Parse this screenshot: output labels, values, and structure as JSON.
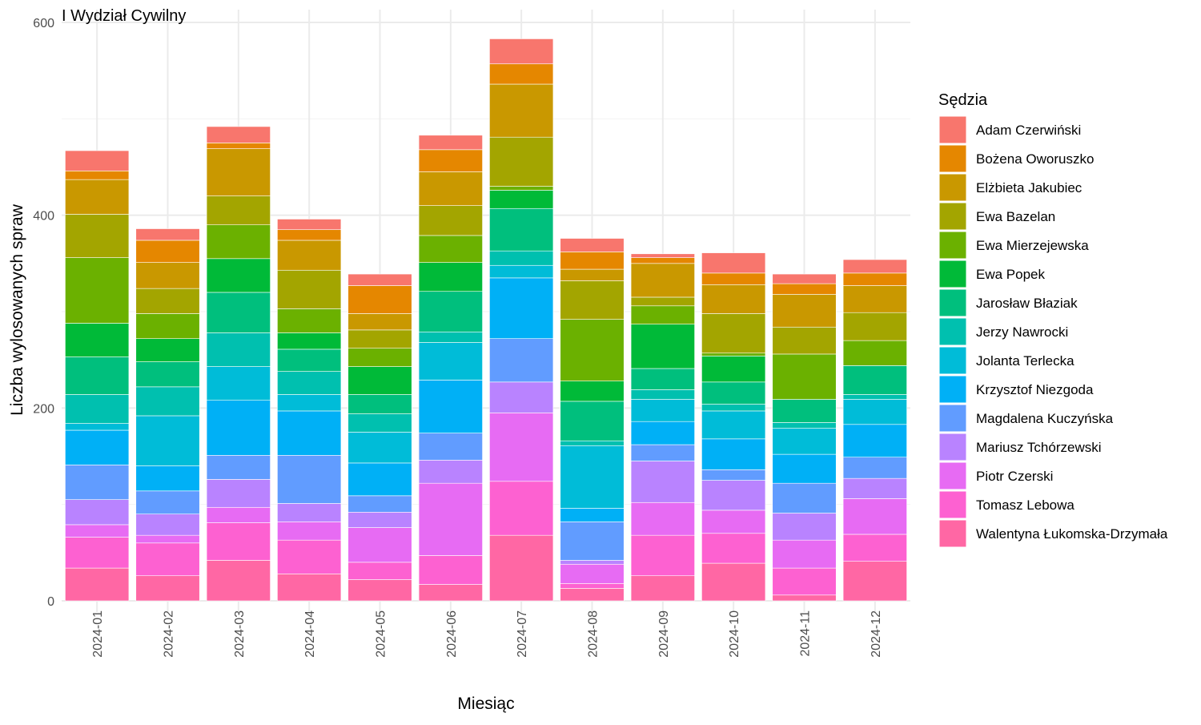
{
  "chart_data": {
    "type": "bar",
    "stacked": true,
    "title": "I Wydział Cywilny",
    "xlabel": "Miesiąc",
    "ylabel": "Liczba wylosowanych spraw",
    "legend_title": "Sędzia",
    "legend_position": "right",
    "grid": true,
    "ylim": [
      0,
      600
    ],
    "yticks": [
      0,
      200,
      400,
      600
    ],
    "categories": [
      "2024-01",
      "2024-02",
      "2024-03",
      "2024-04",
      "2024-05",
      "2024-06",
      "2024-07",
      "2024-08",
      "2024-09",
      "2024-10",
      "2024-11",
      "2024-12"
    ],
    "series": [
      {
        "name": "Adam Czerwiński",
        "color": "#F8766D",
        "values": [
          21,
          12,
          17,
          11,
          12,
          15,
          26,
          14,
          4,
          21,
          10,
          14
        ]
      },
      {
        "name": "Bożena Oworuszko",
        "color": "#E58700",
        "values": [
          9,
          23,
          6,
          11,
          29,
          23,
          21,
          18,
          6,
          12,
          11,
          13
        ]
      },
      {
        "name": "Elżbieta Jakubiec",
        "color": "#C99800",
        "values": [
          36,
          27,
          49,
          31,
          17,
          35,
          55,
          12,
          35,
          30,
          34,
          28
        ]
      },
      {
        "name": "Ewa Bazelan",
        "color": "#A3A500",
        "values": [
          45,
          26,
          30,
          40,
          19,
          31,
          51,
          40,
          9,
          41,
          28,
          29
        ]
      },
      {
        "name": "Ewa Mierzejewska",
        "color": "#6BB100",
        "values": [
          68,
          26,
          35,
          25,
          19,
          28,
          4,
          64,
          19,
          3,
          47,
          26
        ]
      },
      {
        "name": "Ewa Popek",
        "color": "#00BA38",
        "values": [
          35,
          24,
          35,
          17,
          29,
          30,
          19,
          21,
          46,
          27,
          0,
          0
        ]
      },
      {
        "name": "Jarosław Błaziak",
        "color": "#00BF7D",
        "values": [
          39,
          26,
          42,
          23,
          20,
          42,
          44,
          41,
          22,
          23,
          24,
          30
        ]
      },
      {
        "name": "Jerzy Nawrocki",
        "color": "#00C0AF",
        "values": [
          30,
          30,
          35,
          24,
          19,
          11,
          15,
          5,
          10,
          7,
          6,
          5
        ]
      },
      {
        "name": "Jolanta Terlecka",
        "color": "#00BCD8",
        "values": [
          7,
          52,
          35,
          17,
          32,
          39,
          13,
          65,
          23,
          29,
          27,
          26
        ]
      },
      {
        "name": "Krzysztof Niezgoda",
        "color": "#00B0F6",
        "values": [
          36,
          26,
          57,
          46,
          34,
          55,
          63,
          14,
          24,
          32,
          30,
          34
        ]
      },
      {
        "name": "Magdalena Kuczyńska",
        "color": "#619CFF",
        "values": [
          36,
          24,
          25,
          50,
          17,
          28,
          45,
          40,
          17,
          11,
          31,
          22
        ]
      },
      {
        "name": "Mariusz Tchórzewski",
        "color": "#B983FF",
        "values": [
          26,
          22,
          29,
          19,
          16,
          24,
          32,
          4,
          43,
          31,
          28,
          21
        ]
      },
      {
        "name": "Piotr Czerski",
        "color": "#E76BF3",
        "values": [
          13,
          8,
          16,
          19,
          36,
          75,
          71,
          20,
          34,
          24,
          29,
          37
        ]
      },
      {
        "name": "Tomasz Lebowa",
        "color": "#FD61D1",
        "values": [
          32,
          34,
          39,
          35,
          18,
          30,
          56,
          5,
          42,
          31,
          28,
          28
        ]
      },
      {
        "name": "Walentyna Łukomska-Drzymała",
        "color": "#FF67A4",
        "values": [
          34,
          26,
          42,
          28,
          22,
          17,
          68,
          13,
          26,
          39,
          6,
          41
        ]
      }
    ]
  }
}
